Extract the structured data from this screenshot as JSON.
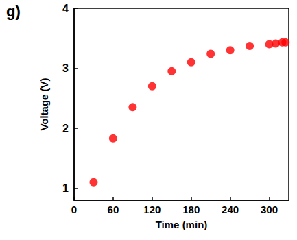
{
  "chart_data": {
    "type": "scatter",
    "title": "g)",
    "x_label": "Time (min)",
    "y_label": "Voltage (V)",
    "x": [
      30,
      60,
      90,
      120,
      150,
      180,
      210,
      240,
      270,
      300,
      310,
      320,
      325
    ],
    "values": [
      1.1,
      1.83,
      2.35,
      2.7,
      2.95,
      3.1,
      3.24,
      3.3,
      3.37,
      3.4,
      3.41,
      3.43,
      3.43
    ],
    "color": "#ff0000",
    "marker": "circle",
    "xlim": [
      0,
      330
    ],
    "xticks": [
      0,
      60,
      120,
      180,
      240,
      300
    ],
    "ylim": [
      0.8,
      4
    ],
    "yticks": [
      1,
      2,
      3,
      4
    ],
    "grid": false
  }
}
